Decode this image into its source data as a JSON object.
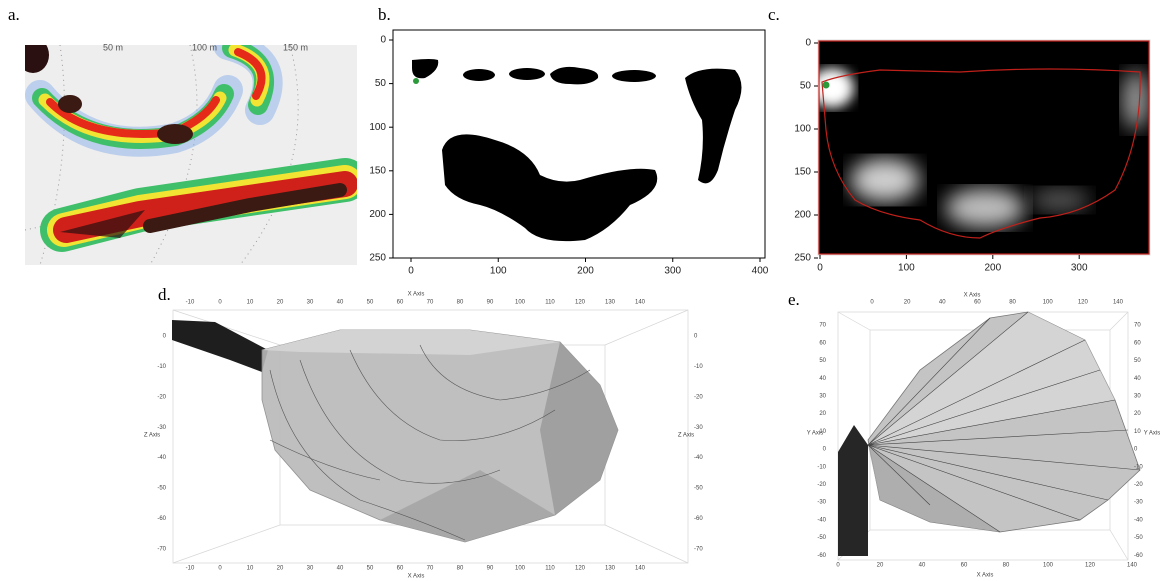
{
  "panels": [
    {
      "label": "a.",
      "range_labels": [
        "50 m",
        "100 m",
        "150 m"
      ]
    },
    {
      "label": "b.",
      "xticks": [
        0,
        100,
        200,
        300,
        400
      ],
      "yticks": [
        0,
        50,
        100,
        150,
        200,
        250
      ]
    },
    {
      "label": "c.",
      "xticks": [
        0,
        100,
        200,
        300
      ],
      "yticks": [
        0,
        50,
        100,
        150,
        200,
        250
      ]
    },
    {
      "label": "d.",
      "x_axis_label": "X Axis",
      "z_axis_label": "Z Axis",
      "xticks": [
        -10,
        0,
        10,
        20,
        30,
        40,
        50,
        60,
        70,
        80,
        90,
        100,
        110,
        120,
        130,
        140
      ],
      "zticks": [
        0,
        -10,
        -20,
        -30,
        -40,
        -50,
        -60,
        -70
      ]
    },
    {
      "label": "e.",
      "x_axis_label": "X Axis",
      "y_axis_label": "Y Axis",
      "xticks": [
        0,
        20,
        40,
        60,
        80,
        100,
        120,
        140
      ],
      "yticks": [
        70,
        60,
        50,
        40,
        30,
        20,
        10,
        0,
        -10,
        -20,
        -30,
        -40,
        -50,
        -60
      ]
    }
  ]
}
